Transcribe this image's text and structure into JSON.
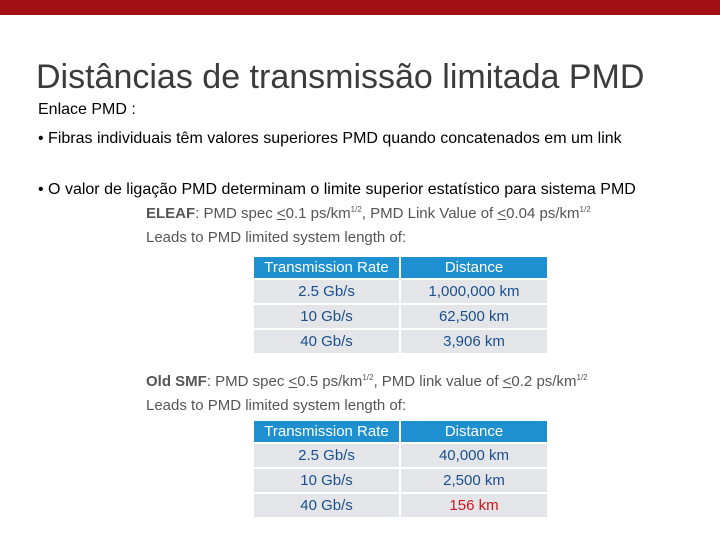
{
  "title": "Distâncias de transmissão limitada PMD",
  "intro": "Enlace PMD :",
  "bullets": [
    "• Fibras individuais têm valores superiores PMD quando concatenados em um link",
    "• O valor de ligação PMD determinam o limite superior estatístico para sistema PMD"
  ],
  "colors": {
    "top_bar": "#a30f12",
    "table_header": "#1e90d0",
    "table_cell": "#e3e5e9",
    "highlight": "#d0161b"
  },
  "sections": [
    {
      "fiber": "ELEAF",
      "spec_a": ": PMD spec ",
      "spec_sym_a": "<",
      "spec_b": "0.1 ps/km",
      "spec_sup_a": "1/2",
      "spec_c": ", PMD Link Value of ",
      "spec_sym_b": "<",
      "spec_d": "0.04 ps/km",
      "spec_sup_b": "1/2",
      "leads": "Leads to PMD limited system length of:",
      "header": [
        "Transmission Rate",
        "Distance"
      ],
      "rows": [
        [
          "2.5 Gb/s",
          "1,000,000 km"
        ],
        [
          "10 Gb/s",
          "62,500 km"
        ],
        [
          "40 Gb/s",
          "3,906 km"
        ]
      ]
    },
    {
      "fiber": "Old SMF",
      "spec_a": ": PMD spec ",
      "spec_sym_a": "<",
      "spec_b": "0.5 ps/km",
      "spec_sup_a": "1/2",
      "spec_c": ", PMD link value of ",
      "spec_sym_b": "<",
      "spec_d": "0.2 ps/km",
      "spec_sup_b": "1/2",
      "leads": "Leads to PMD limited system length of:",
      "header": [
        "Transmission Rate",
        "Distance"
      ],
      "rows": [
        [
          "2.5 Gb/s",
          "40,000 km"
        ],
        [
          "10 Gb/s",
          "2,500 km"
        ],
        [
          "40 Gb/s",
          "156 km"
        ]
      ]
    }
  ]
}
